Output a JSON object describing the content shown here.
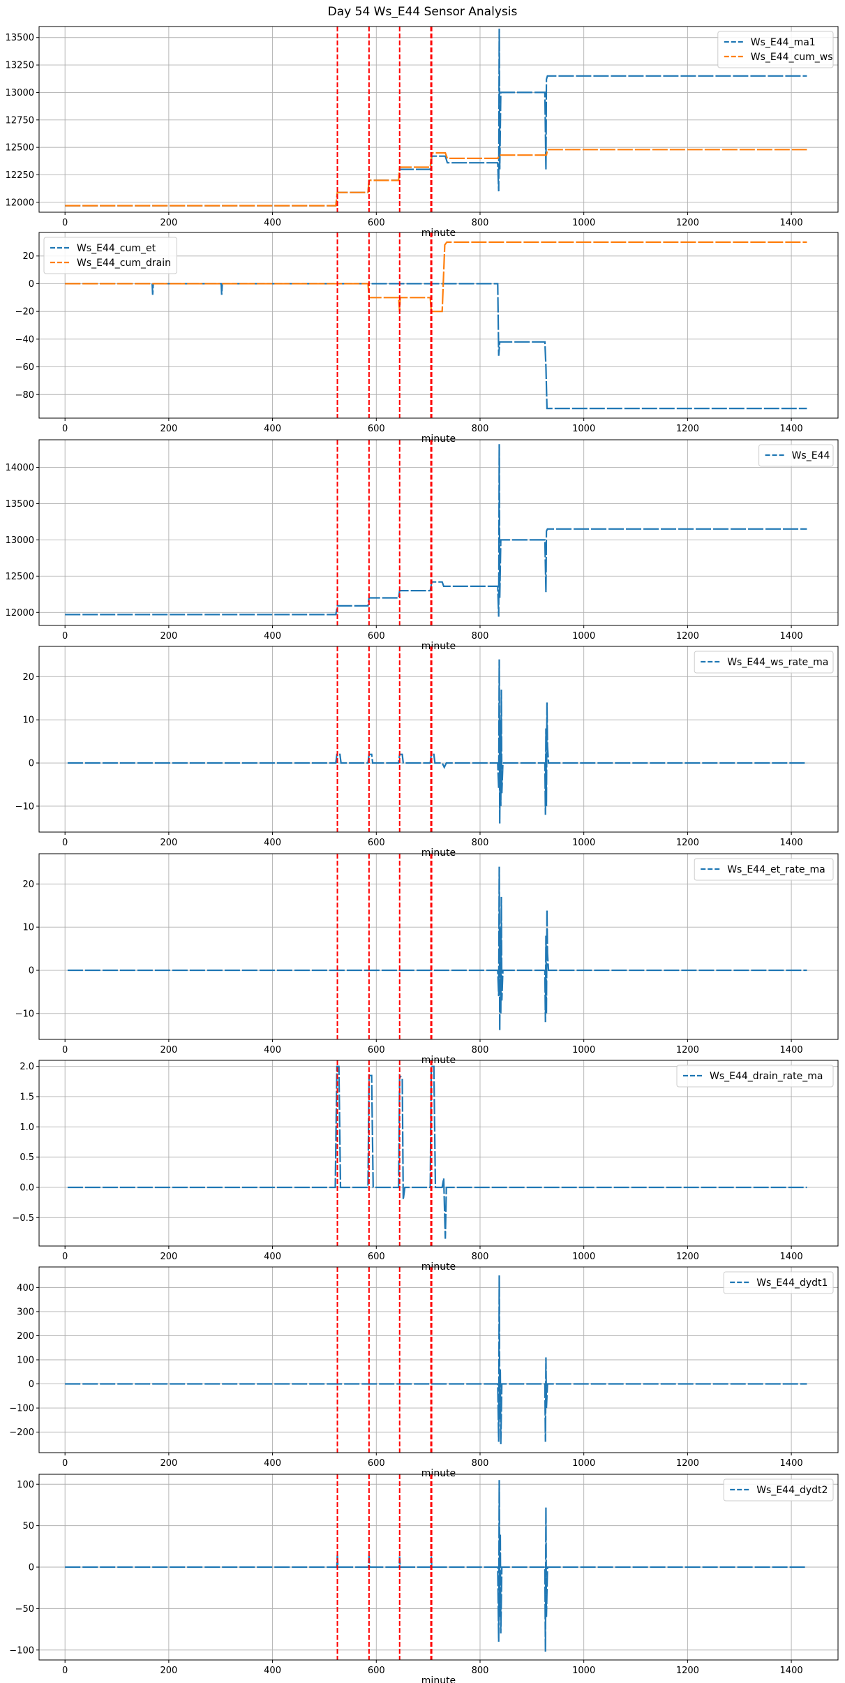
{
  "title": "Day 54 Ws_E44 Sensor Analysis",
  "colors": {
    "blue": "#1f77b4",
    "orange": "#ff7f0e",
    "red": "#ff0000",
    "grid": "#b0b0b0"
  },
  "event_lines": [
    525,
    586,
    645,
    706
  ],
  "chart_data": [
    {
      "type": "line",
      "xlabel": "minute",
      "xlim": [
        -50,
        1490
      ],
      "xticks": [
        0,
        200,
        400,
        600,
        800,
        1000,
        1200,
        1400
      ],
      "ylim": [
        11910,
        13600
      ],
      "yticks": [
        12000,
        12250,
        12500,
        12750,
        13000,
        13250,
        13500
      ],
      "legend_position": "top-right",
      "series": [
        {
          "name": "Ws_E44_ma1",
          "color": "#1f77b4",
          "points": [
            [
              0,
              11970
            ],
            [
              522,
              11970
            ],
            [
              525,
              12090
            ],
            [
              584,
              12090
            ],
            [
              586,
              12200
            ],
            [
              643,
              12200
            ],
            [
              645,
              12300
            ],
            [
              704,
              12300
            ],
            [
              707,
              12420
            ],
            [
              733,
              12420
            ],
            [
              737,
              12360
            ],
            [
              834,
              12360
            ],
            [
              836,
              12100
            ],
            [
              837,
              13580
            ],
            [
              838,
              12300
            ],
            [
              840,
              13000
            ],
            [
              925,
              13000
            ],
            [
              927,
              12300
            ],
            [
              928,
              13120
            ],
            [
              930,
              13150
            ],
            [
              1430,
              13150
            ]
          ]
        },
        {
          "name": "Ws_E44_cum_ws",
          "color": "#ff7f0e",
          "points": [
            [
              0,
              11970
            ],
            [
              522,
              11970
            ],
            [
              525,
              12090
            ],
            [
              584,
              12090
            ],
            [
              586,
              12200
            ],
            [
              643,
              12200
            ],
            [
              645,
              12320
            ],
            [
              704,
              12320
            ],
            [
              707,
              12450
            ],
            [
              733,
              12450
            ],
            [
              737,
              12400
            ],
            [
              834,
              12400
            ],
            [
              838,
              12430
            ],
            [
              928,
              12430
            ],
            [
              930,
              12480
            ],
            [
              1430,
              12480
            ]
          ]
        }
      ]
    },
    {
      "type": "line",
      "xlabel": "minute",
      "xlim": [
        -50,
        1490
      ],
      "xticks": [
        0,
        200,
        400,
        600,
        800,
        1000,
        1200,
        1400
      ],
      "ylim": [
        -97,
        37
      ],
      "yticks": [
        20,
        0,
        -20,
        -40,
        -60,
        -80
      ],
      "legend_position": "top-left",
      "series": [
        {
          "name": "Ws_E44_cum_et",
          "color": "#1f77b4",
          "points": [
            [
              0,
              0
            ],
            [
              168,
              0
            ],
            [
              169,
              -8
            ],
            [
              170,
              0
            ],
            [
              301,
              0
            ],
            [
              302,
              -8
            ],
            [
              303,
              0
            ],
            [
              834,
              0
            ],
            [
              836,
              -52
            ],
            [
              838,
              -42
            ],
            [
              925,
              -42
            ],
            [
              927,
              -60
            ],
            [
              929,
              -90
            ],
            [
              1430,
              -90
            ]
          ]
        },
        {
          "name": "Ws_E44_cum_drain",
          "color": "#ff7f0e",
          "points": [
            [
              0,
              0
            ],
            [
              584,
              0
            ],
            [
              586,
              -10
            ],
            [
              643,
              -10
            ],
            [
              645,
              -20
            ],
            [
              646,
              -10
            ],
            [
              704,
              -10
            ],
            [
              706,
              -20
            ],
            [
              727,
              -20
            ],
            [
              732,
              28
            ],
            [
              736,
              30
            ],
            [
              1430,
              30
            ]
          ]
        }
      ]
    },
    {
      "type": "line",
      "xlabel": "minute",
      "xlim": [
        -50,
        1490
      ],
      "xticks": [
        0,
        200,
        400,
        600,
        800,
        1000,
        1200,
        1400
      ],
      "ylim": [
        11820,
        14380
      ],
      "yticks": [
        12000,
        12500,
        13000,
        13500,
        14000
      ],
      "legend_position": "top-right",
      "series": [
        {
          "name": "Ws_E44",
          "color": "#1f77b4",
          "points": [
            [
              0,
              11970
            ],
            [
              522,
              11970
            ],
            [
              525,
              12090
            ],
            [
              584,
              12090
            ],
            [
              586,
              12200
            ],
            [
              643,
              12200
            ],
            [
              645,
              12300
            ],
            [
              704,
              12300
            ],
            [
              707,
              12420
            ],
            [
              727,
              12420
            ],
            [
              730,
              12360
            ],
            [
              834,
              12360
            ],
            [
              836,
              11940
            ],
            [
              837,
              14320
            ],
            [
              838,
              12200
            ],
            [
              840,
              13000
            ],
            [
              925,
              13000
            ],
            [
              927,
              12280
            ],
            [
              928,
              13120
            ],
            [
              930,
              13150
            ],
            [
              1430,
              13150
            ]
          ]
        }
      ]
    },
    {
      "type": "line",
      "xlabel": "minute",
      "xlim": [
        -50,
        1490
      ],
      "xticks": [
        0,
        200,
        400,
        600,
        800,
        1000,
        1200,
        1400
      ],
      "ylim": [
        -16,
        27
      ],
      "yticks": [
        20,
        10,
        0,
        -10
      ],
      "legend_position": "top-right",
      "series": [
        {
          "name": "Ws_E44_ws_rate_ma",
          "color": "#1f77b4",
          "points": [
            [
              5,
              0
            ],
            [
              522,
              0
            ],
            [
              524,
              2
            ],
            [
              530,
              2
            ],
            [
              532,
              0
            ],
            [
              584,
              0
            ],
            [
              586,
              2
            ],
            [
              591,
              2
            ],
            [
              593,
              0
            ],
            [
              643,
              0
            ],
            [
              645,
              2
            ],
            [
              650,
              2
            ],
            [
              652,
              0
            ],
            [
              704,
              0
            ],
            [
              706,
              2
            ],
            [
              711,
              2
            ],
            [
              713,
              0
            ],
            [
              727,
              0
            ],
            [
              731,
              -1
            ],
            [
              735,
              0
            ],
            [
              834,
              0
            ],
            [
              836,
              -6
            ],
            [
              837,
              24
            ],
            [
              838,
              -14
            ],
            [
              839,
              10
            ],
            [
              840,
              -10
            ],
            [
              841,
              17
            ],
            [
              842,
              -7
            ],
            [
              844,
              0
            ],
            [
              925,
              0
            ],
            [
              926,
              -12
            ],
            [
              927,
              8
            ],
            [
              928,
              -10
            ],
            [
              929,
              14
            ],
            [
              930,
              4
            ],
            [
              932,
              0
            ],
            [
              1430,
              0
            ]
          ]
        }
      ]
    },
    {
      "type": "line",
      "xlabel": "minute",
      "xlim": [
        -50,
        1490
      ],
      "xticks": [
        0,
        200,
        400,
        600,
        800,
        1000,
        1200,
        1400
      ],
      "ylim": [
        -16,
        27
      ],
      "yticks": [
        20,
        10,
        0,
        -10
      ],
      "legend_position": "top-right",
      "series": [
        {
          "name": "Ws_E44_et_rate_ma",
          "color": "#1f77b4",
          "points": [
            [
              5,
              0
            ],
            [
              834,
              0
            ],
            [
              836,
              -6
            ],
            [
              837,
              24
            ],
            [
              838,
              -14
            ],
            [
              839,
              10
            ],
            [
              840,
              -10
            ],
            [
              841,
              17
            ],
            [
              842,
              -7
            ],
            [
              844,
              0
            ],
            [
              925,
              0
            ],
            [
              926,
              -12
            ],
            [
              927,
              8
            ],
            [
              928,
              -10
            ],
            [
              929,
              14
            ],
            [
              930,
              4
            ],
            [
              932,
              0
            ],
            [
              1430,
              0
            ]
          ]
        }
      ]
    },
    {
      "type": "line",
      "xlabel": "minute",
      "xlim": [
        -50,
        1490
      ],
      "xticks": [
        0,
        200,
        400,
        600,
        800,
        1000,
        1200,
        1400
      ],
      "ylim": [
        -0.97,
        2.1
      ],
      "yticks": [
        2.0,
        1.5,
        1.0,
        0.5,
        0.0,
        -0.5
      ],
      "legend_position": "top-right",
      "series": [
        {
          "name": "Ws_E44_drain_rate_ma",
          "color": "#1f77b4",
          "points": [
            [
              5,
              0
            ],
            [
              521,
              0
            ],
            [
              524,
              2.0
            ],
            [
              528,
              2.0
            ],
            [
              531,
              0
            ],
            [
              584,
              0
            ],
            [
              586,
              1.85
            ],
            [
              591,
              1.85
            ],
            [
              594,
              0
            ],
            [
              643,
              0
            ],
            [
              645,
              1.85
            ],
            [
              650,
              1.8
            ],
            [
              652,
              -0.2
            ],
            [
              655,
              0
            ],
            [
              704,
              0
            ],
            [
              706,
              2.0
            ],
            [
              711,
              2.0
            ],
            [
              714,
              0
            ],
            [
              727,
              0
            ],
            [
              730,
              0.15
            ],
            [
              733,
              -0.85
            ],
            [
              735,
              0
            ],
            [
              1430,
              0
            ]
          ]
        }
      ]
    },
    {
      "type": "line",
      "xlabel": "minute",
      "xlim": [
        -50,
        1490
      ],
      "xticks": [
        0,
        200,
        400,
        600,
        800,
        1000,
        1200,
        1400
      ],
      "ylim": [
        -285,
        485
      ],
      "yticks": [
        400,
        300,
        200,
        100,
        0,
        -100,
        -200
      ],
      "legend_position": "top-right",
      "series": [
        {
          "name": "Ws_E44_dydt1",
          "color": "#1f77b4",
          "points": [
            [
              0,
              0
            ],
            [
              834,
              0
            ],
            [
              836,
              -240
            ],
            [
              837,
              450
            ],
            [
              838,
              -150
            ],
            [
              839,
              60
            ],
            [
              840,
              -250
            ],
            [
              842,
              0
            ],
            [
              925,
              0
            ],
            [
              926,
              -240
            ],
            [
              927,
              110
            ],
            [
              928,
              -100
            ],
            [
              930,
              0
            ],
            [
              1430,
              0
            ]
          ]
        }
      ]
    },
    {
      "type": "line",
      "xlabel": "minute",
      "xlim": [
        -50,
        1490
      ],
      "xticks": [
        0,
        200,
        400,
        600,
        800,
        1000,
        1200,
        1400
      ],
      "ylim": [
        -112,
        112
      ],
      "yticks": [
        100,
        50,
        0,
        -50,
        -100
      ],
      "legend_position": "top-right",
      "series": [
        {
          "name": "Ws_E44_dydt2",
          "color": "#1f77b4",
          "points": [
            [
              0,
              0
            ],
            [
              524,
              0
            ],
            [
              525,
              15
            ],
            [
              526,
              0
            ],
            [
              585,
              0
            ],
            [
              586,
              14
            ],
            [
              587,
              0
            ],
            [
              644,
              0
            ],
            [
              645,
              13
            ],
            [
              646,
              0
            ],
            [
              705,
              0
            ],
            [
              706,
              13
            ],
            [
              707,
              0
            ],
            [
              834,
              0
            ],
            [
              836,
              -90
            ],
            [
              837,
              105
            ],
            [
              838,
              -60
            ],
            [
              839,
              40
            ],
            [
              840,
              -80
            ],
            [
              842,
              0
            ],
            [
              925,
              0
            ],
            [
              926,
              -102
            ],
            [
              927,
              72
            ],
            [
              928,
              -60
            ],
            [
              930,
              0
            ],
            [
              1430,
              0
            ]
          ]
        }
      ]
    }
  ]
}
